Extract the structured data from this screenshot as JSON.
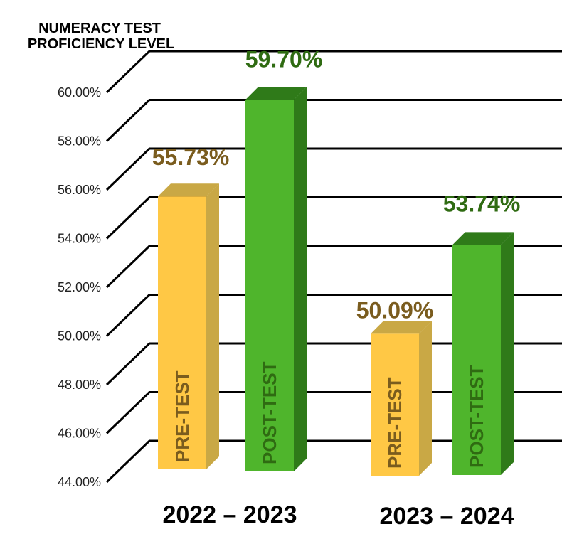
{
  "chart_data": {
    "type": "bar",
    "title_lines": [
      "NUMERACY TEST",
      "PROFICIENCY LEVEL"
    ],
    "ylim": [
      44,
      60
    ],
    "y_ticks": [
      "44.00%",
      "46.00%",
      "48.00%",
      "50.00%",
      "52.00%",
      "54.00%",
      "56.00%",
      "58.00%",
      "60.00%"
    ],
    "groups": [
      {
        "label": "2022 – 2023",
        "bars": [
          {
            "name": "PRE-TEST",
            "value": 55.73,
            "label": "55.73%",
            "color": "#ffc845",
            "side": "#c9a845",
            "label_color": "#7a5c1e"
          },
          {
            "name": "POST-TEST",
            "value": 59.7,
            "label": "59.70%",
            "color": "#4fb52c",
            "side": "#2f7a19",
            "label_color": "#2f6b12"
          }
        ]
      },
      {
        "label": "2023 – 2024",
        "bars": [
          {
            "name": "PRE-TEST",
            "value": 50.09,
            "label": "50.09%",
            "color": "#ffc845",
            "side": "#c9a845",
            "label_color": "#7a5c1e"
          },
          {
            "name": "POST-TEST",
            "value": 53.74,
            "label": "53.74%",
            "color": "#4fb52c",
            "side": "#2f7a19",
            "label_color": "#2f6b12"
          }
        ]
      }
    ],
    "grid": true
  }
}
